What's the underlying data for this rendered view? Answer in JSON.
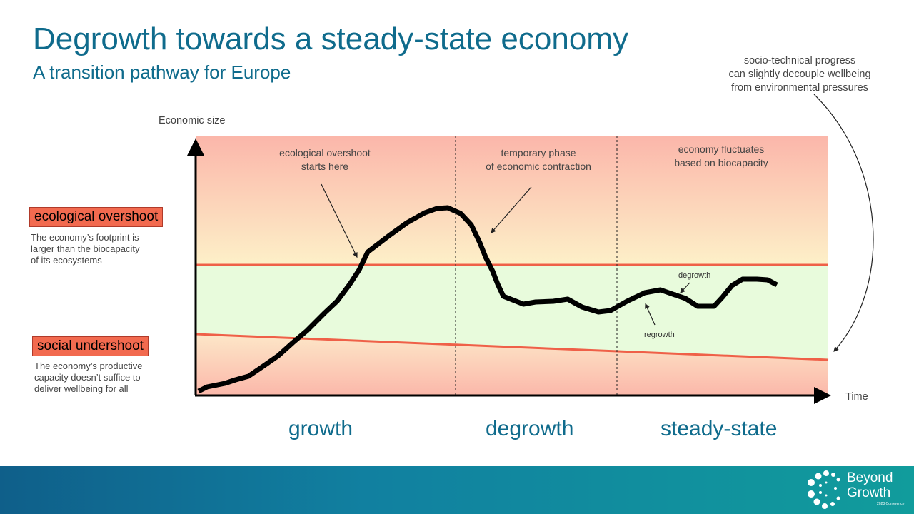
{
  "title": "Degrowth towards a steady-state economy",
  "subtitle": "A transition pathway for Europe",
  "axes": {
    "y_label": "Economic size",
    "x_label": "Time"
  },
  "annotations": {
    "top_right": "socio-technical progress\ncan slightly decouple wellbeing\nfrom environmental pressures",
    "overshoot_start": "ecological overshoot\nstarts here",
    "contraction": "temporary phase\nof economic contraction",
    "fluctuates": "economy fluctuates\nbased on biocapacity",
    "degrowth_small": "degrowth",
    "regrowth_small": "regrowth"
  },
  "legend": {
    "overshoot_label": "ecological overshoot",
    "overshoot_desc": "The economy’s footprint is\nlarger than the biocapacity\nof its ecosystems",
    "undershoot_label": "social undershoot",
    "undershoot_desc": "The economy’s productive\ncapacity doesn’t suffice to\ndeliver wellbeing for all"
  },
  "phases": [
    "growth",
    "degrowth",
    "steady-state"
  ],
  "logo": {
    "line1": "Beyond",
    "line2": "Growth",
    "line3": "2023 Conference"
  },
  "colors": {
    "title": "#0f6b8c",
    "boundary": "#f26a4f",
    "overshoot_zone": "#fbb8aa",
    "safe_zone": "#e8fbdc",
    "curve": "#000000"
  }
}
